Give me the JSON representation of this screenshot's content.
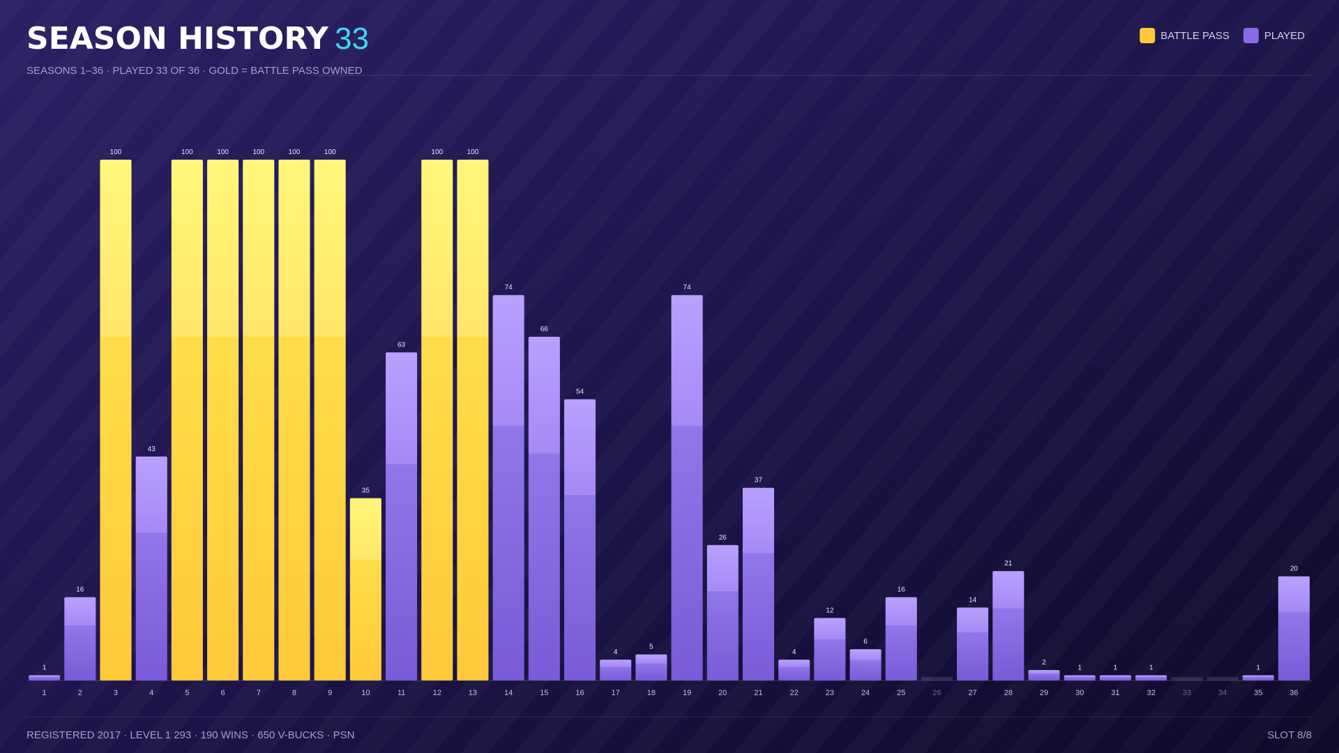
{
  "chart_data": {
    "type": "bar",
    "title": "SEASON HISTORY",
    "title_badge": "33",
    "subtitle": "SEASONS 1–36 · PLAYED 33 OF 36 · GOLD = BATTLE PASS OWNED",
    "footer": "REGISTERED 2017 · LEVEL 1 293 · 190 WINS · 650 V-BUCKS · PSN",
    "slot": "SLOT 8/8",
    "categories": [
      "1",
      "2",
      "3",
      "4",
      "5",
      "6",
      "7",
      "8",
      "9",
      "10",
      "11",
      "12",
      "13",
      "14",
      "15",
      "16",
      "17",
      "18",
      "19",
      "20",
      "21",
      "22",
      "23",
      "24",
      "25",
      "26",
      "27",
      "28",
      "29",
      "30",
      "31",
      "32",
      "33",
      "34",
      "35",
      "36"
    ],
    "series": [
      {
        "name": "BATTLE PASS",
        "color": "#ffc93a",
        "values": [
          null,
          null,
          100,
          null,
          100,
          100,
          100,
          100,
          100,
          35,
          null,
          100,
          100,
          null,
          null,
          null,
          null,
          null,
          null,
          null,
          null,
          null,
          null,
          null,
          null,
          null,
          null,
          null,
          null,
          null,
          null,
          null,
          null,
          null,
          null,
          null
        ]
      },
      {
        "name": "PLAYED",
        "color": "#8a6ae6",
        "values": [
          1,
          16,
          null,
          43,
          null,
          null,
          null,
          null,
          null,
          null,
          63,
          null,
          null,
          74,
          66,
          54,
          4,
          5,
          74,
          26,
          37,
          4,
          12,
          6,
          16,
          null,
          14,
          21,
          2,
          1,
          1,
          1,
          null,
          null,
          1,
          20
        ]
      }
    ],
    "ylim": [
      0,
      100
    ]
  }
}
